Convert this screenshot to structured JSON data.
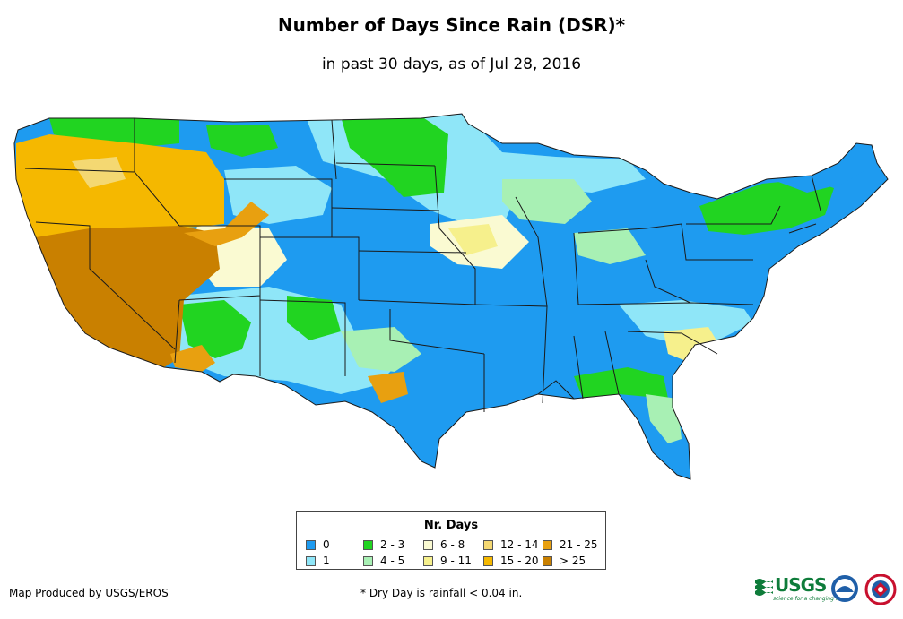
{
  "header": {
    "title": "Number of Days Since Rain (DSR)*",
    "subtitle": "in past 30 days, as of Jul 28, 2016"
  },
  "legend": {
    "title": "Nr. Days",
    "items": [
      {
        "label": "0",
        "color": "#1e9bf0"
      },
      {
        "label": "1",
        "color": "#8fe6f8"
      },
      {
        "label": "2 - 3",
        "color": "#21d421"
      },
      {
        "label": "4 - 5",
        "color": "#a8f0b4"
      },
      {
        "label": "6 - 8",
        "color": "#fafad2"
      },
      {
        "label": "9 - 11",
        "color": "#f6f08c"
      },
      {
        "label": "12 - 14",
        "color": "#f4d872"
      },
      {
        "label": "15 - 20",
        "color": "#f5b800"
      },
      {
        "label": "21 - 25",
        "color": "#e8a010"
      },
      {
        "label": "> 25",
        "color": "#c98000"
      }
    ]
  },
  "footer": {
    "credit": "Map Produced by USGS/EROS",
    "footnote": "* Dry Day is rainfall < 0.04 in.",
    "usgs_logo": "USGS",
    "usgs_tagline": "science for a changing world"
  },
  "map": {
    "name": "contiguous-united-states",
    "state_border_color": "#1a1a1a",
    "icons": [
      "usgs-logo-icon",
      "noaa-logo-icon",
      "nws-logo-icon"
    ]
  }
}
